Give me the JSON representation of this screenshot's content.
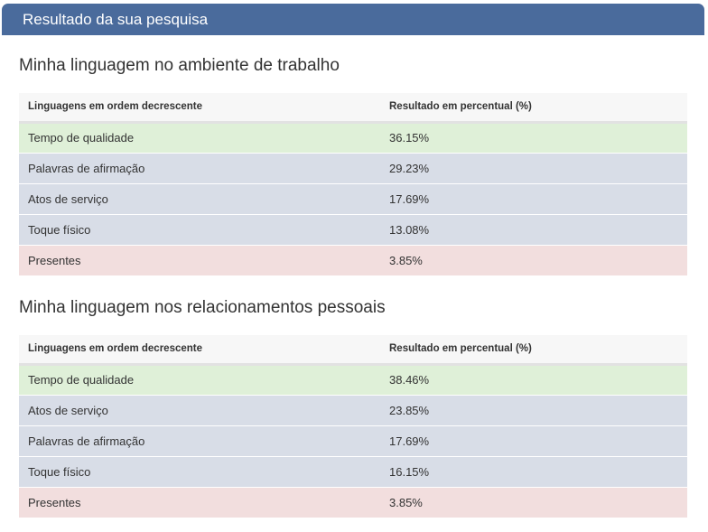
{
  "header": {
    "title": "Resultado da sua pesquisa"
  },
  "sections": [
    {
      "title": "Minha linguagem no ambiente de trabalho",
      "columns": [
        "Linguagens em ordem decrescente",
        "Resultado em percentual (%)"
      ],
      "rows": [
        {
          "language": "Tempo de qualidade",
          "percent": "36.15%",
          "status": "top"
        },
        {
          "language": "Palavras de afirmação",
          "percent": "29.23%",
          "status": "mid"
        },
        {
          "language": "Atos de serviço",
          "percent": "17.69%",
          "status": "mid"
        },
        {
          "language": "Toque físico",
          "percent": "13.08%",
          "status": "mid"
        },
        {
          "language": "Presentes",
          "percent": "3.85%",
          "status": "low"
        }
      ]
    },
    {
      "title": "Minha linguagem nos relacionamentos pessoais",
      "columns": [
        "Linguagens em ordem decrescente",
        "Resultado em percentual (%)"
      ],
      "rows": [
        {
          "language": "Tempo de qualidade",
          "percent": "38.46%",
          "status": "top"
        },
        {
          "language": "Atos de serviço",
          "percent": "23.85%",
          "status": "mid"
        },
        {
          "language": "Palavras de afirmação",
          "percent": "17.69%",
          "status": "mid"
        },
        {
          "language": "Toque físico",
          "percent": "16.15%",
          "status": "mid"
        },
        {
          "language": "Presentes",
          "percent": "3.85%",
          "status": "low"
        }
      ]
    }
  ],
  "colors": {
    "header_bg": "#4a6b9c",
    "row_top": "#dff0d8",
    "row_mid": "#d8dde7",
    "row_low": "#f2dede"
  }
}
